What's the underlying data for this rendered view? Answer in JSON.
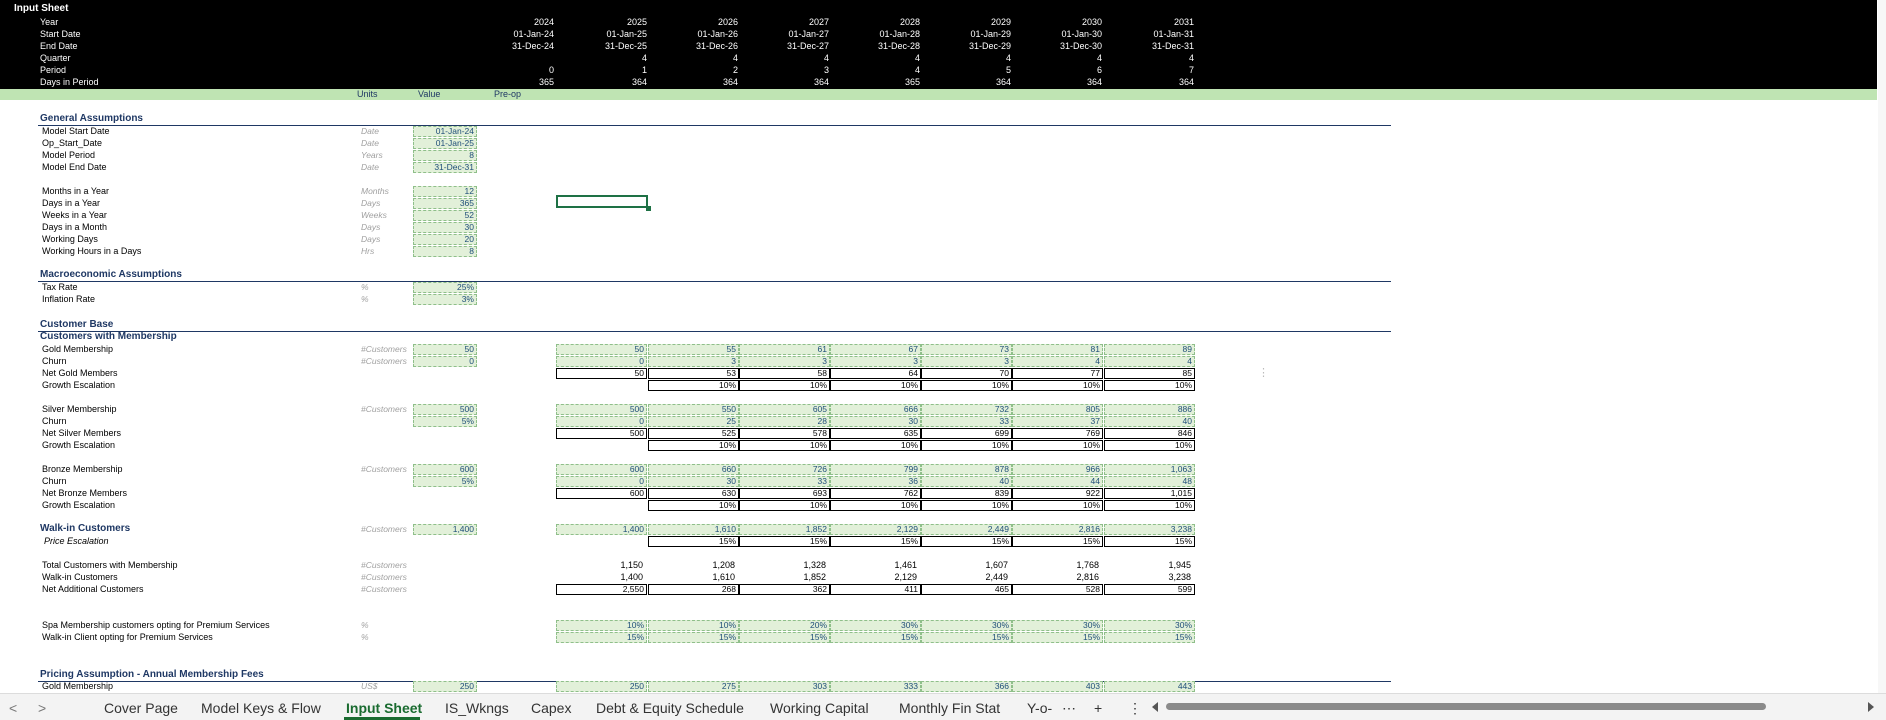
{
  "sheet_title": "Input Sheet",
  "header_rows": [
    {
      "label": "Year",
      "values": [
        "2024",
        "2025",
        "2026",
        "2027",
        "2028",
        "2029",
        "2030",
        "2031"
      ]
    },
    {
      "label": "Start Date",
      "values": [
        "01-Jan-24",
        "01-Jan-25",
        "01-Jan-26",
        "01-Jan-27",
        "01-Jan-28",
        "01-Jan-29",
        "01-Jan-30",
        "01-Jan-31"
      ]
    },
    {
      "label": "End Date",
      "values": [
        "31-Dec-24",
        "31-Dec-25",
        "31-Dec-26",
        "31-Dec-27",
        "31-Dec-28",
        "31-Dec-29",
        "31-Dec-30",
        "31-Dec-31"
      ]
    },
    {
      "label": "Quarter",
      "values": [
        "",
        "4",
        "4",
        "4",
        "4",
        "4",
        "4",
        "4"
      ]
    },
    {
      "label": "Period",
      "values": [
        "0",
        "1",
        "2",
        "3",
        "4",
        "5",
        "6",
        "7"
      ]
    },
    {
      "label": "Days in Period",
      "values": [
        "365",
        "364",
        "364",
        "364",
        "365",
        "364",
        "364",
        "364"
      ]
    }
  ],
  "col_headers": {
    "units": "Units",
    "value": "Value",
    "preop": "Pre-op"
  },
  "general": {
    "title": "General Assumptions",
    "rows": [
      {
        "label": "Model Start Date",
        "unit": "Date",
        "value": "01-Jan-24"
      },
      {
        "label": "Op_Start_Date",
        "unit": "Date",
        "value": "01-Jan-25"
      },
      {
        "label": "Model Period",
        "unit": "Years",
        "value": "8"
      },
      {
        "label": "Model End Date",
        "unit": "Date",
        "value": "31-Dec-31"
      }
    ],
    "rows2": [
      {
        "label": "Months in a Year",
        "unit": "Months",
        "value": "12"
      },
      {
        "label": "Days in a Year",
        "unit": "Days",
        "value": "365"
      },
      {
        "label": "Weeks in a Year",
        "unit": "Weeks",
        "value": "52"
      },
      {
        "label": "Days in a Month",
        "unit": "Days",
        "value": "30"
      },
      {
        "label": "Working Days",
        "unit": "Days",
        "value": "20"
      },
      {
        "label": "Working Hours in a Days",
        "unit": "Hrs",
        "value": "8"
      }
    ]
  },
  "macro": {
    "title": "Macroeconomic Assumptions",
    "rows": [
      {
        "label": "Tax Rate",
        "unit": "%",
        "value": "25%"
      },
      {
        "label": "Inflation Rate",
        "unit": "%",
        "value": "3%"
      }
    ]
  },
  "customer_base": {
    "title": "Customer Base",
    "subtitle": "Customers with Membership",
    "blocks": [
      {
        "rows": [
          {
            "label": "Gold Membership",
            "unit": "#Customers",
            "value": "50",
            "style": "input",
            "values": [
              "50",
              "55",
              "61",
              "67",
              "73",
              "81",
              "89"
            ]
          },
          {
            "label": "Churn",
            "unit": "#Customers",
            "value": "0",
            "style": "input",
            "values": [
              "0",
              "3",
              "3",
              "3",
              "3",
              "4",
              "4"
            ]
          },
          {
            "label": "Net Gold Members",
            "unit": "",
            "value": "",
            "style": "calc",
            "values": [
              "50",
              "53",
              "58",
              "64",
              "70",
              "77",
              "85"
            ]
          },
          {
            "label": "Growth Escalation",
            "unit": "",
            "value": "",
            "style": "calc",
            "values": [
              "",
              "10%",
              "10%",
              "10%",
              "10%",
              "10%",
              "10%"
            ]
          }
        ]
      },
      {
        "rows": [
          {
            "label": "Silver Membership",
            "unit": "#Customers",
            "value": "500",
            "style": "input",
            "values": [
              "500",
              "550",
              "605",
              "666",
              "732",
              "805",
              "886"
            ]
          },
          {
            "label": "Churn",
            "unit": "",
            "value": "5%",
            "style": "input",
            "values": [
              "0",
              "25",
              "28",
              "30",
              "33",
              "37",
              "40"
            ]
          },
          {
            "label": "Net Silver Members",
            "unit": "",
            "value": "",
            "style": "calc",
            "values": [
              "500",
              "525",
              "578",
              "635",
              "699",
              "769",
              "846"
            ]
          },
          {
            "label": "Growth Escalation",
            "unit": "",
            "value": "",
            "style": "calc",
            "values": [
              "",
              "10%",
              "10%",
              "10%",
              "10%",
              "10%",
              "10%"
            ]
          }
        ]
      },
      {
        "rows": [
          {
            "label": "Bronze Membership",
            "unit": "#Customers",
            "value": "600",
            "style": "input",
            "values": [
              "600",
              "660",
              "726",
              "799",
              "878",
              "966",
              "1,063"
            ]
          },
          {
            "label": "Churn",
            "unit": "",
            "value": "5%",
            "style": "input",
            "values": [
              "0",
              "30",
              "33",
              "36",
              "40",
              "44",
              "48"
            ]
          },
          {
            "label": "Net Bronze Members",
            "unit": "",
            "value": "",
            "style": "calc",
            "values": [
              "600",
              "630",
              "693",
              "762",
              "839",
              "922",
              "1,015"
            ]
          },
          {
            "label": "Growth Escalation",
            "unit": "",
            "value": "",
            "style": "calc",
            "values": [
              "",
              "10%",
              "10%",
              "10%",
              "10%",
              "10%",
              "10%"
            ]
          }
        ]
      }
    ],
    "walkin": {
      "label": "Walk-in Customers",
      "unit": "#Customers",
      "value": "1,400",
      "values": [
        "1,400",
        "1,610",
        "1,852",
        "2,129",
        "2,449",
        "2,816",
        "3,238"
      ]
    },
    "price_esc": {
      "label": "Price Escalation",
      "values": [
        "",
        "15%",
        "15%",
        "15%",
        "15%",
        "15%",
        "15%"
      ]
    },
    "totals": [
      {
        "label": "Total Customers with Membership",
        "unit": "#Customers",
        "values": [
          "1,150",
          "1,208",
          "1,328",
          "1,461",
          "1,607",
          "1,768",
          "1,945"
        ],
        "style": "plain"
      },
      {
        "label": "Walk-in Customers",
        "unit": "#Customers",
        "values": [
          "1,400",
          "1,610",
          "1,852",
          "2,129",
          "2,449",
          "2,816",
          "3,238"
        ],
        "style": "plain"
      },
      {
        "label": "Net Additional Customers",
        "unit": "#Customers",
        "values": [
          "2,550",
          "268",
          "362",
          "411",
          "465",
          "528",
          "599"
        ],
        "style": "calc"
      }
    ],
    "premium": [
      {
        "label": "Spa Membership customers opting for Premium Services",
        "unit": "%",
        "values": [
          "10%",
          "10%",
          "20%",
          "30%",
          "30%",
          "30%",
          "30%"
        ]
      },
      {
        "label": "Walk-in Client opting for Premium Services",
        "unit": "%",
        "values": [
          "15%",
          "15%",
          "15%",
          "15%",
          "15%",
          "15%",
          "15%"
        ]
      }
    ]
  },
  "pricing": {
    "title": "Pricing Assumption - Annual Membership Fees",
    "row": {
      "label": "Gold Membership",
      "unit": "US$",
      "value": "250",
      "values": [
        "250",
        "275",
        "303",
        "333",
        "366",
        "403",
        "443"
      ]
    }
  },
  "tabs": {
    "items": [
      "Cover Page",
      "Model Keys & Flow",
      "Input Sheet",
      "IS_Wkngs",
      "Capex",
      "Debt & Equity Schedule",
      "Working Capital",
      "Monthly Fin Stat",
      "Y-o-"
    ],
    "active": "Input Sheet",
    "prev": "<",
    "next": ">",
    "more": "⋯",
    "add": "+",
    "menu": "⋮"
  }
}
